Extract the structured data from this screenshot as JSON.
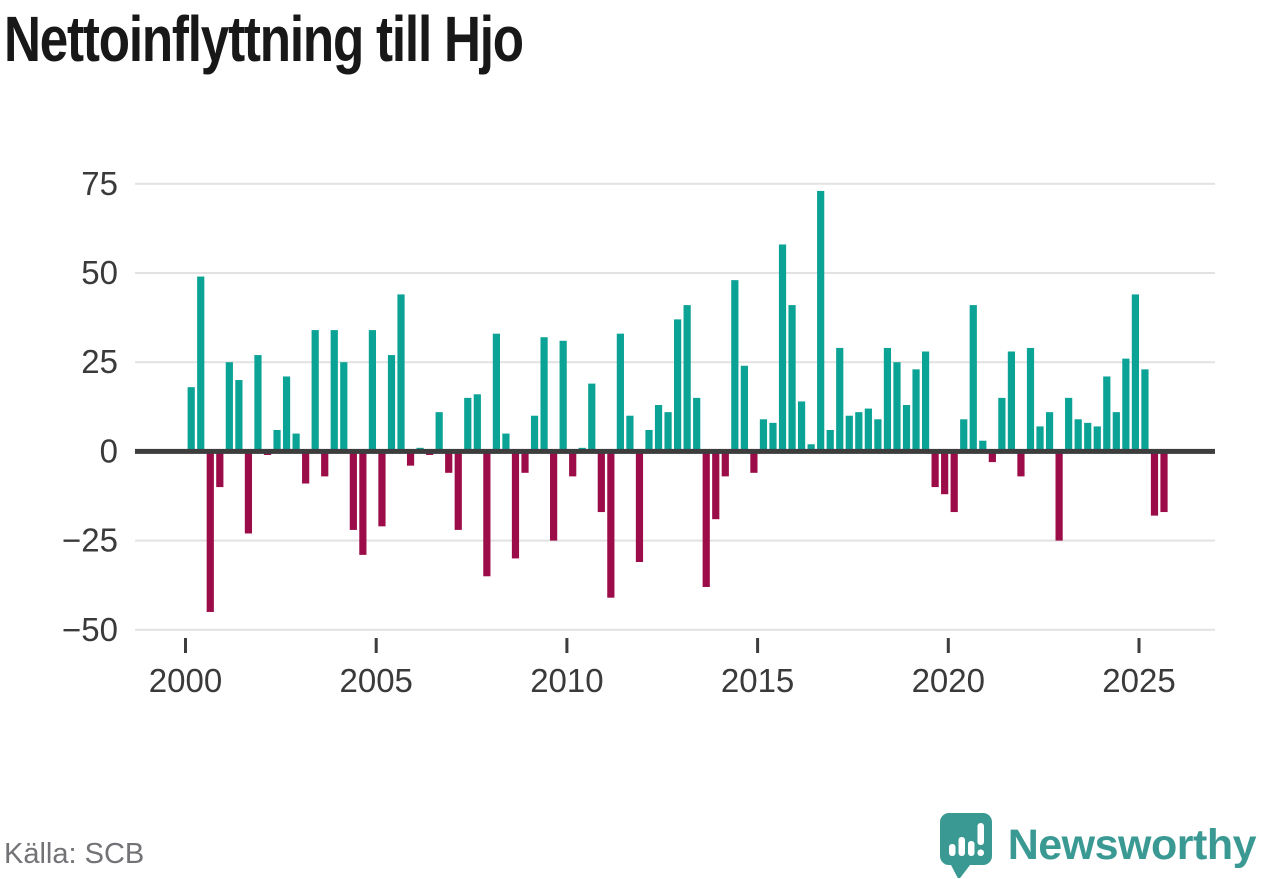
{
  "header": {
    "title": "Nettoinflyttning till Hjo"
  },
  "footer": {
    "source_label": "Källa: SCB",
    "brand_name": "Newsworthy",
    "brand_icon": "newsworthy-speech-bubble-chart-icon",
    "brand_color": "#3a9a93"
  },
  "colors": {
    "positive_bar": "#0ba396",
    "negative_bar": "#9b0c49",
    "zero_line": "#3d3d3d",
    "gridline": "#e2e2e2",
    "axis_text": "#3a3a3a"
  },
  "chart_data": {
    "type": "bar",
    "title": "Nettoinflyttning till Hjo",
    "frequency": "quarterly",
    "x_start_label": "2000 Q1",
    "x_end_label": "2025 Q3",
    "xlabel": "",
    "ylabel": "",
    "ylim": [
      -50,
      78
    ],
    "grid": "horizontal",
    "legend": "none",
    "y_ticks": [
      {
        "v": 75,
        "label": "75"
      },
      {
        "v": 50,
        "label": "50"
      },
      {
        "v": 25,
        "label": "25"
      },
      {
        "v": 0,
        "label": "0"
      },
      {
        "v": -25,
        "label": "−25"
      },
      {
        "v": -50,
        "label": "−50"
      }
    ],
    "x_ticks": [
      {
        "year": 2000,
        "label": "2000"
      },
      {
        "year": 2005,
        "label": "2005"
      },
      {
        "year": 2010,
        "label": "2010"
      },
      {
        "year": 2015,
        "label": "2015"
      },
      {
        "year": 2020,
        "label": "2020"
      },
      {
        "year": 2025,
        "label": "2025"
      }
    ],
    "series": [
      {
        "name": "Nettoinflyttning",
        "values": [
          18,
          49,
          -45,
          -10,
          25,
          20,
          -23,
          27,
          -1,
          6,
          21,
          5,
          -9,
          34,
          -7,
          34,
          25,
          -22,
          -29,
          34,
          -21,
          27,
          44,
          -4,
          1,
          -1,
          11,
          -6,
          -22,
          15,
          16,
          -35,
          33,
          5,
          -30,
          -6,
          10,
          32,
          -25,
          31,
          -7,
          1,
          19,
          -17,
          -41,
          33,
          10,
          -31,
          6,
          13,
          11,
          37,
          41,
          15,
          -38,
          -19,
          -7,
          48,
          24,
          -6,
          9,
          8,
          58,
          41,
          14,
          2,
          73,
          6,
          29,
          10,
          11,
          12,
          9,
          29,
          25,
          13,
          23,
          28,
          -10,
          -12,
          -17,
          9,
          41,
          3,
          -3,
          15,
          28,
          -7,
          29,
          7,
          11,
          -25,
          15,
          9,
          8,
          7,
          21,
          11,
          26,
          44,
          23,
          -18,
          -17
        ]
      }
    ]
  }
}
